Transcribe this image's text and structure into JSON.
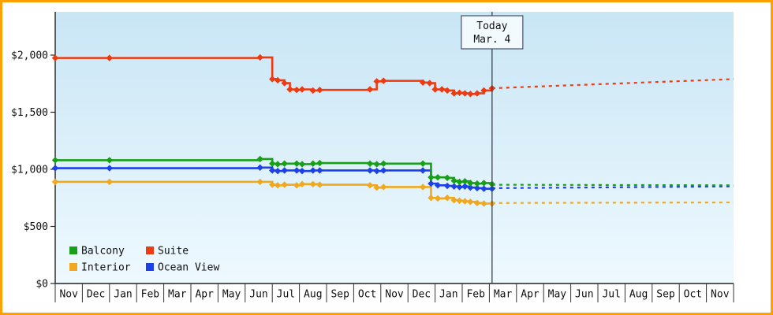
{
  "frame": {
    "border_color": "#ffa000",
    "plot_bg_top": "#c9e6f5",
    "plot_bg_bottom": "#eef9ff"
  },
  "chart_data": {
    "type": "line",
    "title": "",
    "y_axis": {
      "max_value": 2000,
      "ticks": [
        {
          "label": "$2,000",
          "value": 2000
        },
        {
          "label": "$1,500",
          "value": 1500
        },
        {
          "label": "$1,000",
          "value": 1000
        },
        {
          "label": "$500",
          "value": 500
        },
        {
          "label": "$0",
          "value": 0
        }
      ]
    },
    "x_axis": {
      "months": [
        "Nov",
        "Dec",
        "Jan",
        "Feb",
        "Mar",
        "Apr",
        "May",
        "Jun",
        "Jul",
        "Aug",
        "Sep",
        "Oct",
        "Nov",
        "Dec",
        "Jan",
        "Feb",
        "Mar",
        "Apr",
        "May",
        "Jun",
        "Jul",
        "Aug",
        "Sep",
        "Oct",
        "Nov"
      ]
    },
    "today": {
      "label_line1": "Today",
      "label_line2": "Mar. 4",
      "x": 16.1
    },
    "series": [
      {
        "name": "Interior",
        "color": "#f0a81e",
        "solid": [
          [
            0,
            890
          ],
          [
            2,
            890
          ],
          [
            7.55,
            890
          ],
          [
            8.0,
            865
          ],
          [
            8.2,
            860
          ],
          [
            8.45,
            865
          ],
          [
            8.9,
            860
          ],
          [
            9.1,
            870
          ],
          [
            9.5,
            870
          ],
          [
            9.75,
            865
          ],
          [
            11.6,
            860
          ],
          [
            11.85,
            840
          ],
          [
            12.1,
            845
          ],
          [
            13.55,
            845
          ],
          [
            13.85,
            750
          ],
          [
            14.1,
            745
          ],
          [
            14.45,
            750
          ],
          [
            14.7,
            730
          ],
          [
            14.9,
            725
          ],
          [
            15.1,
            720
          ],
          [
            15.3,
            715
          ],
          [
            15.55,
            705
          ],
          [
            15.8,
            700
          ],
          [
            16.1,
            700
          ]
        ],
        "dashed": [
          [
            16.1,
            705
          ],
          [
            25,
            710
          ]
        ]
      },
      {
        "name": "Ocean View",
        "color": "#1c41e8",
        "solid": [
          [
            0,
            1010
          ],
          [
            2,
            1010
          ],
          [
            7.55,
            1015
          ],
          [
            8.0,
            990
          ],
          [
            8.2,
            985
          ],
          [
            8.45,
            990
          ],
          [
            8.9,
            990
          ],
          [
            9.1,
            985
          ],
          [
            9.5,
            990
          ],
          [
            9.75,
            990
          ],
          [
            11.6,
            990
          ],
          [
            11.85,
            985
          ],
          [
            12.1,
            990
          ],
          [
            13.55,
            990
          ],
          [
            13.85,
            875
          ],
          [
            14.1,
            860
          ],
          [
            14.45,
            855
          ],
          [
            14.7,
            850
          ],
          [
            14.9,
            845
          ],
          [
            15.1,
            850
          ],
          [
            15.3,
            840
          ],
          [
            15.55,
            835
          ],
          [
            15.8,
            830
          ],
          [
            16.1,
            830
          ]
        ],
        "dashed": [
          [
            16.1,
            835
          ],
          [
            25,
            850
          ]
        ]
      },
      {
        "name": "Balcony",
        "color": "#17a017",
        "solid": [
          [
            0,
            1080
          ],
          [
            2,
            1080
          ],
          [
            7.55,
            1090
          ],
          [
            8.0,
            1050
          ],
          [
            8.2,
            1045
          ],
          [
            8.45,
            1050
          ],
          [
            8.9,
            1050
          ],
          [
            9.1,
            1045
          ],
          [
            9.5,
            1050
          ],
          [
            9.75,
            1055
          ],
          [
            11.6,
            1050
          ],
          [
            11.85,
            1045
          ],
          [
            12.1,
            1050
          ],
          [
            13.55,
            1050
          ],
          [
            13.85,
            930
          ],
          [
            14.1,
            930
          ],
          [
            14.45,
            925
          ],
          [
            14.7,
            900
          ],
          [
            14.9,
            890
          ],
          [
            15.1,
            895
          ],
          [
            15.3,
            880
          ],
          [
            15.55,
            875
          ],
          [
            15.8,
            880
          ],
          [
            16.1,
            870
          ]
        ],
        "dashed": [
          [
            16.1,
            865
          ],
          [
            25,
            860
          ]
        ]
      },
      {
        "name": "Suite",
        "color": "#ee3a10",
        "solid": [
          [
            0,
            1975
          ],
          [
            2,
            1975
          ],
          [
            7.55,
            1980
          ],
          [
            8.0,
            1790
          ],
          [
            8.2,
            1780
          ],
          [
            8.45,
            1755
          ],
          [
            8.65,
            1700
          ],
          [
            8.9,
            1695
          ],
          [
            9.1,
            1700
          ],
          [
            9.5,
            1690
          ],
          [
            9.75,
            1695
          ],
          [
            11.6,
            1700
          ],
          [
            11.85,
            1770
          ],
          [
            12.1,
            1775
          ],
          [
            13.55,
            1760
          ],
          [
            13.8,
            1755
          ],
          [
            14.0,
            1700
          ],
          [
            14.25,
            1700
          ],
          [
            14.45,
            1690
          ],
          [
            14.7,
            1665
          ],
          [
            14.9,
            1670
          ],
          [
            15.1,
            1665
          ],
          [
            15.3,
            1660
          ],
          [
            15.55,
            1665
          ],
          [
            15.8,
            1690
          ],
          [
            16.1,
            1710
          ]
        ],
        "dashed": [
          [
            16.1,
            1710
          ],
          [
            25,
            1790
          ]
        ]
      }
    ],
    "legend": {
      "rows": [
        [
          "Balcony",
          "Suite"
        ],
        [
          "Interior",
          "Ocean View"
        ]
      ]
    }
  }
}
